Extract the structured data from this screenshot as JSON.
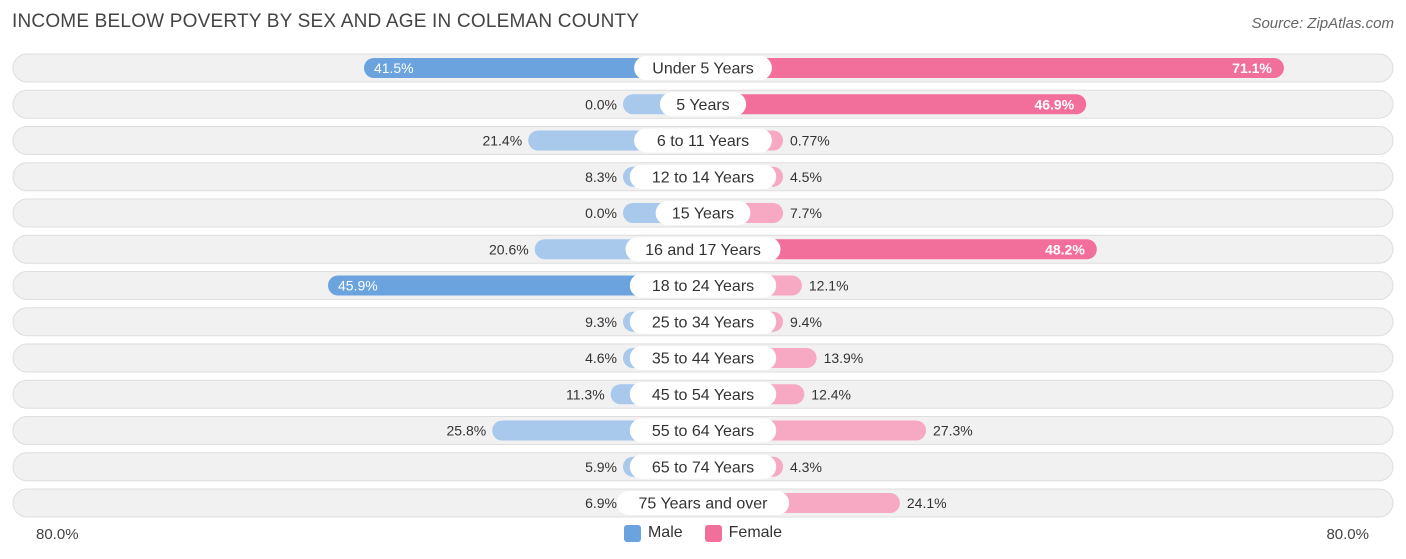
{
  "chart_data": {
    "type": "bar",
    "orientation": "horizontal-diverging",
    "title": "INCOME BELOW POVERTY BY SEX AND AGE IN COLEMAN COUNTY",
    "source": "Source: ZipAtlas.com",
    "categories": [
      "Under 5 Years",
      "5 Years",
      "6 to 11 Years",
      "12 to 14 Years",
      "15 Years",
      "16 and 17 Years",
      "18 to 24 Years",
      "25 to 34 Years",
      "35 to 44 Years",
      "45 to 54 Years",
      "55 to 64 Years",
      "65 to 74 Years",
      "75 Years and over"
    ],
    "series": [
      {
        "name": "Male",
        "values": [
          41.5,
          0.0,
          21.4,
          8.3,
          0.0,
          20.6,
          45.9,
          9.3,
          4.6,
          11.3,
          25.8,
          5.9,
          6.9
        ],
        "labels": [
          "41.5%",
          "0.0%",
          "21.4%",
          "8.3%",
          "0.0%",
          "20.6%",
          "45.9%",
          "9.3%",
          "4.6%",
          "11.3%",
          "25.8%",
          "5.9%",
          "6.9%"
        ]
      },
      {
        "name": "Female",
        "values": [
          71.1,
          46.9,
          0.77,
          4.5,
          7.7,
          48.2,
          12.1,
          9.4,
          13.9,
          12.4,
          27.3,
          4.3,
          24.1
        ],
        "labels": [
          "71.1%",
          "46.9%",
          "0.77%",
          "4.5%",
          "7.7%",
          "48.2%",
          "12.1%",
          "9.4%",
          "13.9%",
          "12.4%",
          "27.3%",
          "4.3%",
          "24.1%"
        ]
      }
    ],
    "axis_min_label": "80.0%",
    "axis_max_label": "80.0%",
    "xlim": [
      -80,
      80
    ],
    "legend_position": "bottom-center",
    "colors": {
      "male_strong": "#6ba3de",
      "male_light": "#a8c8ec",
      "female_strong": "#f36f9b",
      "female_light": "#f7a8c2",
      "row_bg": "#f1f1f1",
      "row_border": "#dedede"
    }
  }
}
